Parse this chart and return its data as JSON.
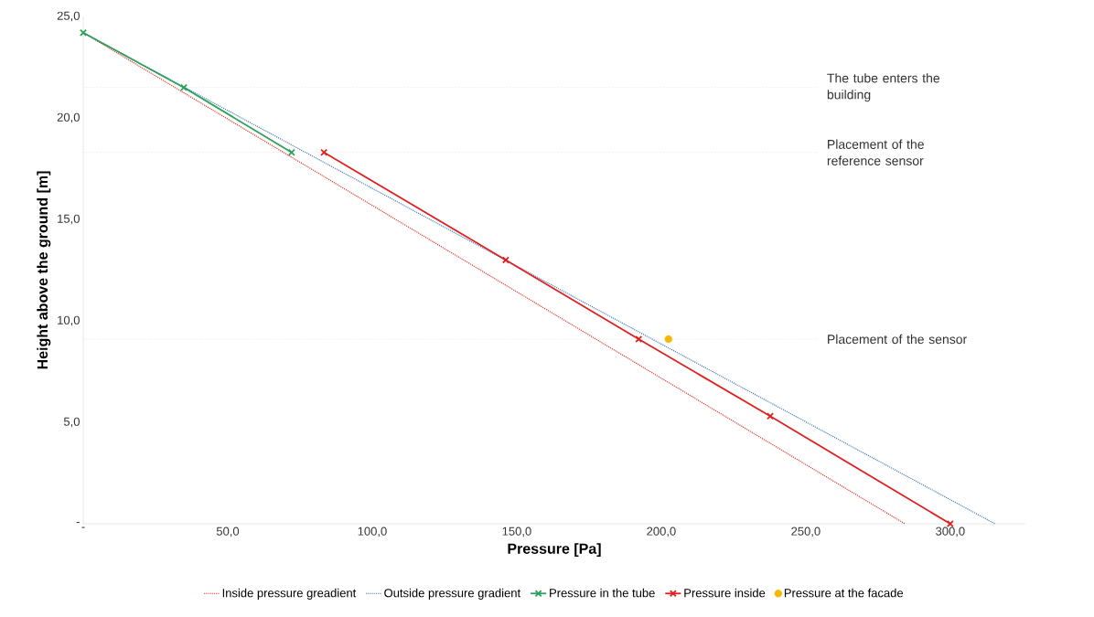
{
  "chart_data": {
    "type": "line",
    "xlabel": "Pressure [Pa]",
    "ylabel": "Height above the ground [m]",
    "xlim": [
      0,
      326
    ],
    "ylim": [
      0,
      25
    ],
    "xticks": [
      {
        "value": 0,
        "label": "-"
      },
      {
        "value": 50,
        "label": "50,0"
      },
      {
        "value": 100,
        "label": "100,0"
      },
      {
        "value": 150,
        "label": "150,0"
      },
      {
        "value": 200,
        "label": "200,0"
      },
      {
        "value": 250,
        "label": "250,0"
      },
      {
        "value": 300,
        "label": "300,0"
      }
    ],
    "yticks": [
      {
        "value": 0,
        "label": "-"
      },
      {
        "value": 5,
        "label": "5,0"
      },
      {
        "value": 10,
        "label": "10,0"
      },
      {
        "value": 15,
        "label": "15,0"
      },
      {
        "value": 20,
        "label": "20,0"
      },
      {
        "value": 25,
        "label": "25,0"
      }
    ],
    "grid": false,
    "legend": "bottom",
    "series": [
      {
        "name": "Inside pressure greadient",
        "color": "#e03a30",
        "line_style": "dotted",
        "marker": "none",
        "x": [
          0,
          284.3
        ],
        "values": [
          24.2,
          0
        ]
      },
      {
        "name": "Outside pressure gradient",
        "color": "#4a7ebb",
        "line_style": "dotted",
        "marker": "none",
        "x": [
          0,
          315.5
        ],
        "values": [
          24.2,
          0
        ]
      },
      {
        "name": "Pressure in the tube",
        "color": "#2ca05a",
        "line_style": "solid",
        "marker": "cross",
        "x": [
          0,
          34.8,
          72.1
        ],
        "values": [
          24.2,
          21.5,
          18.3
        ]
      },
      {
        "name": "Pressure inside",
        "color": "#e02020",
        "line_style": "solid",
        "marker": "cross",
        "x": [
          83.3,
          146.2,
          192.2,
          237.7,
          300
        ],
        "values": [
          18.3,
          13.0,
          9.1,
          5.3,
          0
        ]
      },
      {
        "name": "Pressure at the facade",
        "type": "scatter",
        "color": "#f5b800",
        "marker": "circle",
        "x": [
          202.5
        ],
        "values": [
          9.1
        ]
      }
    ],
    "ref_lines": [
      {
        "axis": "y",
        "value": 21.5,
        "label": "The tube enters the building",
        "color": "#a6a6a6",
        "line_style": "dotted"
      },
      {
        "axis": "y",
        "value": 18.3,
        "label": "Placement of the reference sensor",
        "color": "#a6a6a6",
        "line_style": "dotted"
      },
      {
        "axis": "y",
        "value": 9.1,
        "label": "Placement of the sensor",
        "color": "#a6a6a6",
        "line_style": "dotted"
      }
    ]
  }
}
